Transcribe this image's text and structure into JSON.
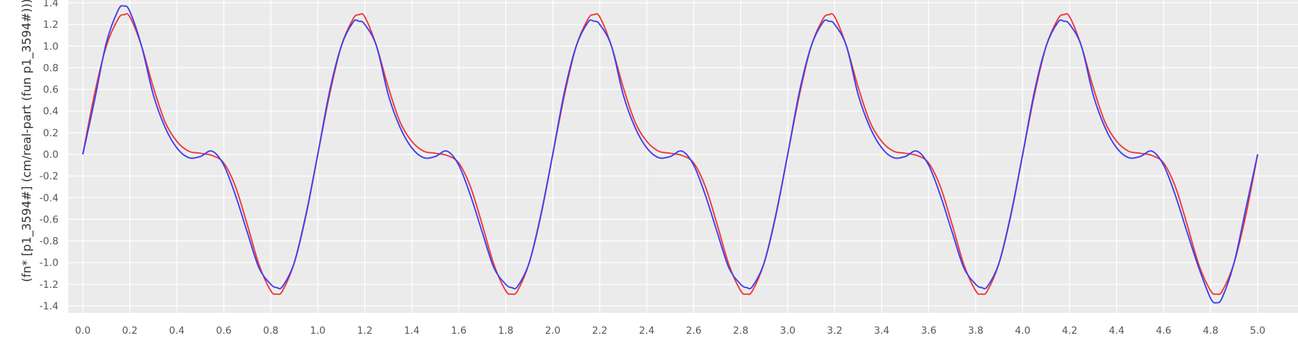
{
  "chart_data": {
    "type": "line",
    "title": "",
    "xlabel": "",
    "ylabel": "(fn* [p1_3594#] (cm/real-part (fun p1_3594#)))",
    "xlim": [
      0.0,
      5.0
    ],
    "ylim": [
      -1.4,
      1.4
    ],
    "x_ticks": [
      "0.0",
      "0.2",
      "0.4",
      "0.6",
      "0.8",
      "1.0",
      "1.2",
      "1.4",
      "1.6",
      "1.8",
      "2.0",
      "2.2",
      "2.4",
      "2.6",
      "2.8",
      "3.0",
      "3.2",
      "3.4",
      "3.6",
      "3.8",
      "4.0",
      "4.2",
      "4.4",
      "4.6",
      "4.8",
      "5.0",
      "5."
    ],
    "y_ticks": [
      "1.4",
      "1.2",
      "1.0",
      "0.8",
      "0.6",
      "0.4",
      "0.2",
      "0.0",
      "-0.2",
      "-0.4",
      "-0.6",
      "-0.8",
      "-1.0",
      "-1.2",
      "-1.4"
    ],
    "grid": true,
    "legend": "none",
    "series": [
      {
        "color": "#ee3b3b",
        "x": [
          0.0,
          0.05,
          0.1,
          0.15,
          0.175,
          0.2,
          0.25,
          0.3,
          0.35,
          0.4,
          0.45,
          0.5,
          0.55,
          0.6,
          0.65,
          0.7,
          0.75,
          0.8,
          0.825,
          0.85,
          0.9,
          0.95,
          1.0,
          1.05,
          1.1,
          1.15,
          1.175,
          1.2,
          1.25,
          1.3,
          1.35,
          1.4,
          1.45,
          1.5,
          1.55,
          1.6,
          1.65,
          1.7,
          1.75,
          1.8,
          1.825,
          1.85,
          1.9,
          1.95,
          2.0,
          2.05,
          2.1,
          2.15,
          2.175,
          2.2,
          2.25,
          2.3,
          2.35,
          2.4,
          2.45,
          2.5,
          2.55,
          2.6,
          2.65,
          2.7,
          2.75,
          2.8,
          2.825,
          2.85,
          2.9,
          2.95,
          3.0,
          3.05,
          3.1,
          3.15,
          3.175,
          3.2,
          3.25,
          3.3,
          3.35,
          3.4,
          3.45,
          3.5,
          3.55,
          3.6,
          3.65,
          3.7,
          3.75,
          3.8,
          3.825,
          3.85,
          3.9,
          3.95,
          4.0,
          4.05,
          4.1,
          4.15,
          4.175,
          4.2,
          4.25,
          4.3,
          4.35,
          4.4,
          4.45,
          4.5,
          4.55,
          4.6,
          4.65,
          4.7,
          4.75,
          4.8,
          4.825,
          4.85,
          4.9,
          4.95,
          5.0
        ],
        "y": [
          0.0,
          0.56,
          1.0,
          1.25,
          1.29,
          1.27,
          1.0,
          0.62,
          0.3,
          0.12,
          0.03,
          0.01,
          -0.01,
          -0.08,
          -0.3,
          -0.65,
          -1.02,
          -1.26,
          -1.29,
          -1.26,
          -1.0,
          -0.55,
          0.0,
          0.55,
          1.0,
          1.25,
          1.29,
          1.27,
          1.0,
          0.62,
          0.3,
          0.12,
          0.03,
          0.01,
          -0.01,
          -0.08,
          -0.3,
          -0.65,
          -1.02,
          -1.26,
          -1.29,
          -1.26,
          -1.0,
          -0.55,
          0.0,
          0.55,
          1.0,
          1.25,
          1.29,
          1.27,
          1.0,
          0.62,
          0.3,
          0.12,
          0.03,
          0.01,
          -0.01,
          -0.08,
          -0.3,
          -0.65,
          -1.02,
          -1.26,
          -1.29,
          -1.26,
          -1.0,
          -0.55,
          0.0,
          0.55,
          1.0,
          1.25,
          1.29,
          1.27,
          1.0,
          0.62,
          0.3,
          0.12,
          0.03,
          0.01,
          -0.01,
          -0.08,
          -0.3,
          -0.65,
          -1.02,
          -1.26,
          -1.29,
          -1.26,
          -1.0,
          -0.55,
          0.0,
          0.55,
          1.0,
          1.25,
          1.29,
          1.27,
          1.0,
          0.62,
          0.3,
          0.12,
          0.03,
          0.01,
          -0.01,
          -0.08,
          -0.3,
          -0.65,
          -1.02,
          -1.26,
          -1.29,
          -1.26,
          -1.0,
          -0.56,
          0.0
        ]
      },
      {
        "color": "#4040ee",
        "x": [
          0.0,
          0.05,
          0.1,
          0.15,
          0.175,
          0.2,
          0.25,
          0.3,
          0.35,
          0.4,
          0.45,
          0.5,
          0.55,
          0.6,
          0.65,
          0.7,
          0.75,
          0.8,
          0.825,
          0.85,
          0.9,
          0.95,
          1.0,
          1.05,
          1.1,
          1.15,
          1.175,
          1.2,
          1.25,
          1.3,
          1.35,
          1.4,
          1.45,
          1.5,
          1.55,
          1.6,
          1.65,
          1.7,
          1.75,
          1.8,
          1.825,
          1.85,
          1.9,
          1.95,
          2.0,
          2.05,
          2.1,
          2.15,
          2.175,
          2.2,
          2.25,
          2.3,
          2.35,
          2.4,
          2.45,
          2.5,
          2.55,
          2.6,
          2.65,
          2.7,
          2.75,
          2.8,
          2.825,
          2.85,
          2.9,
          2.95,
          3.0,
          3.05,
          3.1,
          3.15,
          3.175,
          3.2,
          3.25,
          3.3,
          3.35,
          3.4,
          3.45,
          3.5,
          3.55,
          3.6,
          3.65,
          3.7,
          3.75,
          3.8,
          3.825,
          3.85,
          3.9,
          3.95,
          4.0,
          4.05,
          4.1,
          4.15,
          4.175,
          4.2,
          4.25,
          4.3,
          4.35,
          4.4,
          4.45,
          4.5,
          4.55,
          4.6,
          4.65,
          4.7,
          4.75,
          4.8,
          4.825,
          4.85,
          4.9,
          4.95,
          5.0
        ],
        "y": [
          0.0,
          0.5,
          1.03,
          1.33,
          1.37,
          1.32,
          1.0,
          0.55,
          0.25,
          0.06,
          -0.03,
          -0.02,
          0.03,
          -0.1,
          -0.38,
          -0.72,
          -1.05,
          -1.2,
          -1.23,
          -1.22,
          -1.0,
          -0.56,
          0.0,
          0.58,
          1.0,
          1.22,
          1.23,
          1.2,
          1.0,
          0.55,
          0.25,
          0.06,
          -0.03,
          -0.02,
          0.03,
          -0.1,
          -0.38,
          -0.72,
          -1.05,
          -1.2,
          -1.23,
          -1.22,
          -1.0,
          -0.56,
          0.0,
          0.58,
          1.0,
          1.22,
          1.23,
          1.2,
          1.0,
          0.55,
          0.25,
          0.06,
          -0.03,
          -0.02,
          0.03,
          -0.1,
          -0.38,
          -0.72,
          -1.05,
          -1.2,
          -1.23,
          -1.22,
          -1.0,
          -0.56,
          0.0,
          0.58,
          1.0,
          1.22,
          1.23,
          1.2,
          1.0,
          0.55,
          0.25,
          0.06,
          -0.03,
          -0.02,
          0.03,
          -0.1,
          -0.38,
          -0.72,
          -1.05,
          -1.2,
          -1.23,
          -1.22,
          -1.0,
          -0.56,
          0.0,
          0.58,
          1.0,
          1.22,
          1.23,
          1.2,
          1.0,
          0.55,
          0.25,
          0.06,
          -0.03,
          -0.02,
          0.03,
          -0.1,
          -0.38,
          -0.72,
          -1.05,
          -1.33,
          -1.37,
          -1.32,
          -1.0,
          -0.5,
          0.0
        ]
      }
    ],
    "colors": {
      "plot_background": "#ebebeb",
      "grid": "#ffffff",
      "tick_text": "#555555"
    }
  }
}
